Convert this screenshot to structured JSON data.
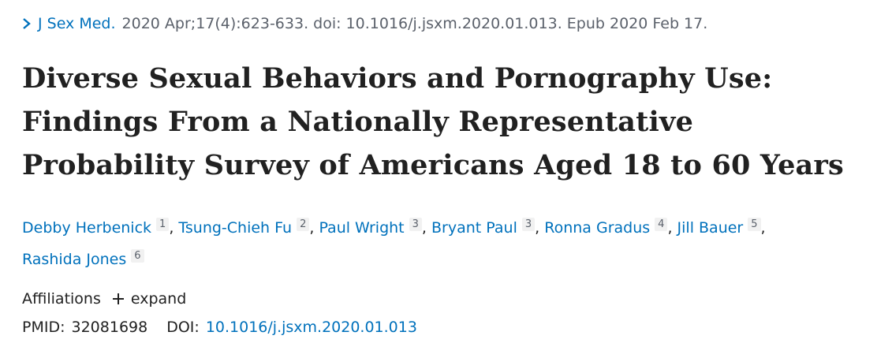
{
  "citation": {
    "journal": "J Sex Med.",
    "details": "2020 Apr;17(4):623-633. doi: 10.1016/j.jsxm.2020.01.013. Epub 2020 Feb 17."
  },
  "title": [
    "Diverse Sexual Behaviors and Pornography Use:",
    "Findings From a Nationally Representative",
    "Probability Survey of Americans Aged 18 to 60 Years"
  ],
  "authors": {
    "separator": ",",
    "list": [
      {
        "name": "Debby Herbenick",
        "affiliation": "1"
      },
      {
        "name": "Tsung-Chieh Fu",
        "affiliation": "2"
      },
      {
        "name": "Paul Wright",
        "affiliation": "3"
      },
      {
        "name": "Bryant Paul",
        "affiliation": "3"
      },
      {
        "name": "Ronna Gradus",
        "affiliation": "4"
      },
      {
        "name": "Jill Bauer",
        "affiliation": "5"
      },
      {
        "name": "Rashida Jones",
        "affiliation": "6"
      }
    ]
  },
  "affiliations": {
    "label": "Affiliations",
    "toggle": "expand"
  },
  "identifiers": {
    "pmid_label": "PMID:",
    "pmid": "32081698",
    "doi_label": "DOI:",
    "doi": "10.1016/j.jsxm.2020.01.013"
  }
}
